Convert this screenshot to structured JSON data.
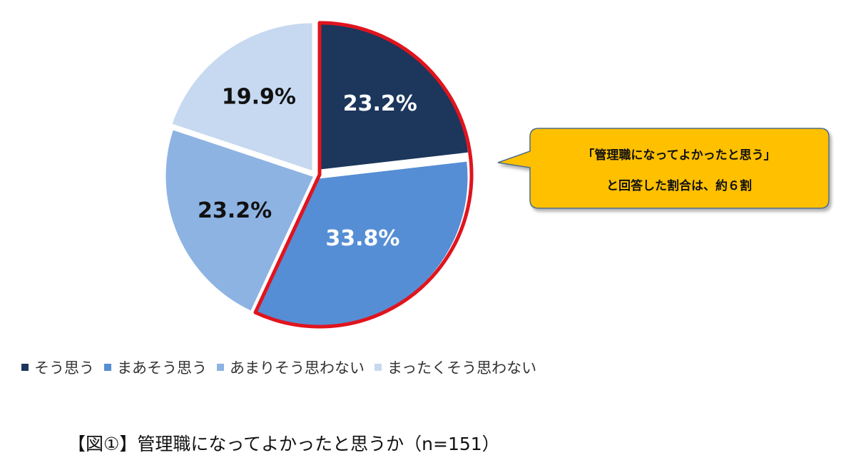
{
  "chart_data": {
    "type": "pie",
    "slices": [
      {
        "label": "そう思う",
        "value": 23.2,
        "display": "23.2%",
        "color": "#1c365c",
        "label_color": "#ffffff"
      },
      {
        "label": "まあそう思う",
        "value": 33.8,
        "display": "33.8%",
        "color": "#558ed5",
        "label_color": "#ffffff"
      },
      {
        "label": "あまりそう思わない",
        "value": 23.2,
        "display": "23.2%",
        "color": "#8db3e2",
        "label_color": "#111111"
      },
      {
        "label": "まったくそう思わない",
        "value": 19.9,
        "display": "19.9%",
        "color": "#c6d9f1",
        "label_color": "#111111"
      }
    ],
    "highlight": {
      "slices": [
        0,
        1
      ],
      "outline_color": "#e0141e"
    },
    "legend_position": "bottom-left",
    "callout": {
      "line1": "「管理職になってよかったと思う」",
      "line2": "と回答した割合は、約６割",
      "fill": "#ffc000",
      "border": "#4f6c8a"
    }
  },
  "caption": "【図①】管理職になってよかったと思うか（n=151）"
}
